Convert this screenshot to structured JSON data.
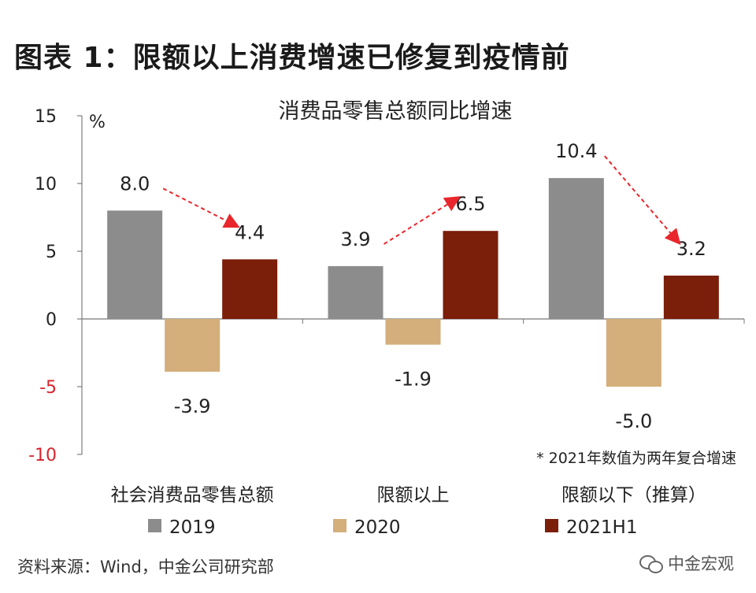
{
  "figure_title": "图表 1：限额以上消费增速已修复到疫情前",
  "source": "资料来源：Wind，中金公司研究部",
  "watermark": "中金宏观",
  "watermark_icon": "wechat-icon",
  "chart_data": {
    "type": "bar",
    "title": "消费品零售总额同比增速",
    "ylabel": "%",
    "ylim": [
      -10,
      15
    ],
    "yticks": [
      -10,
      -5,
      0,
      5,
      10,
      15
    ],
    "negative_tick_color": "#d9232d",
    "categories": [
      "社会消费品零售总额",
      "限额以上",
      "限额以下（推算）"
    ],
    "series": [
      {
        "name": "2019",
        "color": "#8c8c8c",
        "values": [
          8.0,
          3.9,
          10.4
        ],
        "labels": [
          "8.0",
          "3.9",
          "10.4"
        ]
      },
      {
        "name": "2020",
        "color": "#d4ae7b",
        "values": [
          -3.9,
          -1.9,
          -5.0
        ],
        "labels": [
          "-3.9",
          "-1.9",
          "-5.0"
        ]
      },
      {
        "name": "2021H1",
        "color": "#7b1e0a",
        "values": [
          4.4,
          6.5,
          3.2
        ],
        "labels": [
          "4.4",
          "6.5",
          "3.2"
        ]
      }
    ],
    "note": "* 2021年数值为两年复合增速",
    "arrow_color": "#e8262b",
    "grid": false,
    "legend": "bottom"
  }
}
